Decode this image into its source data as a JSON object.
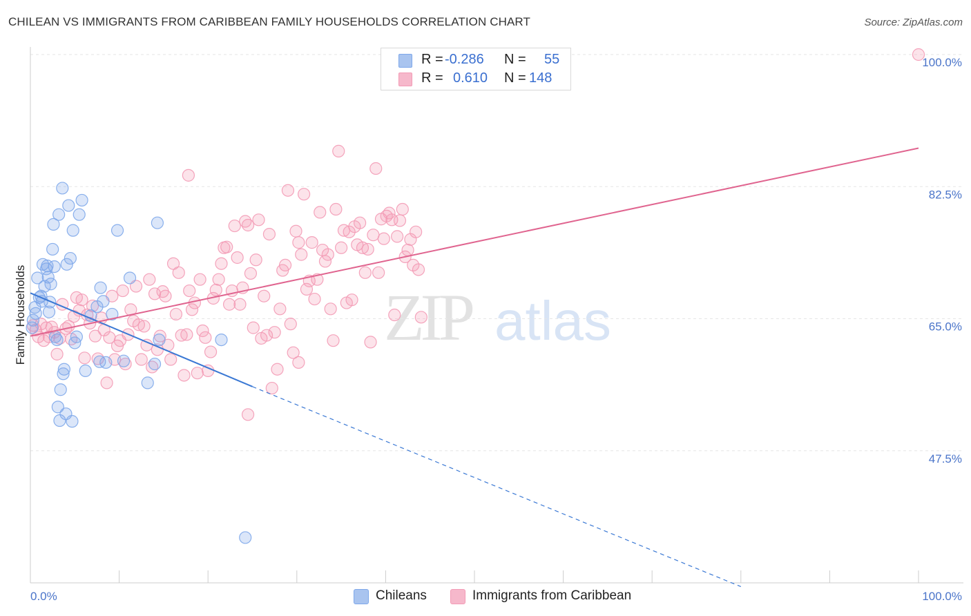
{
  "title": "CHILEAN VS IMMIGRANTS FROM CARIBBEAN FAMILY HOUSEHOLDS CORRELATION CHART",
  "source": "Source: ZipAtlas.com",
  "watermark": {
    "zip": "ZIP",
    "atlas": "atlas"
  },
  "legend": {
    "r_label": "R =",
    "n_label": "N =",
    "rows": [
      {
        "r": "-0.286",
        "n": "55",
        "color": "#a9c4ef"
      },
      {
        "r": "0.610",
        "n": "148",
        "color": "#f6b8cb"
      }
    ]
  },
  "bottom_legend": [
    {
      "label": "Chileans",
      "color": "#a9c4ef"
    },
    {
      "label": "Immigrants from Caribbean",
      "color": "#f6b8cb"
    }
  ],
  "chart_data": {
    "type": "scatter",
    "title": "CHILEAN VS IMMIGRANTS FROM CARIBBEAN FAMILY HOUSEHOLDS CORRELATION CHART",
    "xlabel": "",
    "ylabel": "Family Households",
    "xlim": [
      0,
      100
    ],
    "ylim": [
      30,
      100
    ],
    "x_tick_labels": [
      "0.0%",
      "100.0%"
    ],
    "y_ticks": [
      47.5,
      65.0,
      82.5,
      100.0
    ],
    "y_tick_labels": [
      "47.5%",
      "65.0%",
      "82.5%",
      "100.0%"
    ],
    "grid": true,
    "series": [
      {
        "name": "Chileans",
        "color": "#7da7ea",
        "line_color": "#3a78d4",
        "trend": {
          "x0": 0,
          "y0": 68.4,
          "x1": 25,
          "y1": 56.0,
          "dash_to_x": 80,
          "dash_to_y": 29.5
        },
        "points": [
          [
            0.3,
            64.8
          ],
          [
            0.5,
            66.5
          ],
          [
            0.6,
            65.7
          ],
          [
            0.8,
            70.4
          ],
          [
            1.0,
            67.8
          ],
          [
            1.2,
            68.0
          ],
          [
            1.3,
            67.3
          ],
          [
            1.4,
            72.2
          ],
          [
            1.6,
            69.3
          ],
          [
            1.8,
            71.6
          ],
          [
            1.9,
            72.0
          ],
          [
            2.0,
            70.5
          ],
          [
            2.1,
            65.9
          ],
          [
            2.2,
            67.2
          ],
          [
            2.3,
            69.6
          ],
          [
            2.5,
            74.2
          ],
          [
            2.7,
            71.9
          ],
          [
            2.6,
            77.5
          ],
          [
            2.8,
            62.6
          ],
          [
            3.0,
            62.2
          ],
          [
            3.1,
            53.3
          ],
          [
            3.2,
            78.8
          ],
          [
            3.3,
            51.5
          ],
          [
            3.4,
            55.6
          ],
          [
            3.6,
            82.3
          ],
          [
            3.7,
            57.7
          ],
          [
            3.8,
            58.3
          ],
          [
            4.0,
            52.4
          ],
          [
            4.1,
            72.2
          ],
          [
            4.3,
            80.0
          ],
          [
            4.5,
            73.0
          ],
          [
            4.7,
            51.4
          ],
          [
            4.8,
            76.7
          ],
          [
            5.0,
            61.8
          ],
          [
            5.2,
            62.6
          ],
          [
            5.5,
            78.8
          ],
          [
            5.8,
            80.7
          ],
          [
            6.2,
            58.1
          ],
          [
            6.8,
            65.4
          ],
          [
            7.5,
            66.6
          ],
          [
            7.8,
            59.3
          ],
          [
            7.9,
            69.1
          ],
          [
            8.2,
            67.3
          ],
          [
            8.5,
            59.2
          ],
          [
            9.2,
            65.6
          ],
          [
            9.8,
            76.7
          ],
          [
            10.5,
            59.4
          ],
          [
            11.2,
            70.4
          ],
          [
            13.2,
            56.5
          ],
          [
            14.3,
            77.7
          ],
          [
            14.5,
            62.2
          ],
          [
            14.0,
            59.0
          ],
          [
            21.5,
            62.2
          ],
          [
            24.2,
            36.0
          ],
          [
            0.2,
            63.8
          ]
        ]
      },
      {
        "name": "Immigrants from Caribbean",
        "color": "#f39ab5",
        "line_color": "#e0648f",
        "trend": {
          "x0": 0,
          "y0": 62.7,
          "x1": 100,
          "y1": 87.6
        },
        "points": [
          [
            0.3,
            64.1
          ],
          [
            0.6,
            63.5
          ],
          [
            0.9,
            62.6
          ],
          [
            1.2,
            64.3
          ],
          [
            1.5,
            62.1
          ],
          [
            1.8,
            63.8
          ],
          [
            2.1,
            62.6
          ],
          [
            2.4,
            63.9
          ],
          [
            2.7,
            63.2
          ],
          [
            3.0,
            60.3
          ],
          [
            3.3,
            62.4
          ],
          [
            3.6,
            66.9
          ],
          [
            4.0,
            63.7
          ],
          [
            4.3,
            64.0
          ],
          [
            4.6,
            62.3
          ],
          [
            4.9,
            65.3
          ],
          [
            5.2,
            67.8
          ],
          [
            5.5,
            66.1
          ],
          [
            5.8,
            67.5
          ],
          [
            6.1,
            59.8
          ],
          [
            6.4,
            65.5
          ],
          [
            6.7,
            64.4
          ],
          [
            7.0,
            66.7
          ],
          [
            7.3,
            62.7
          ],
          [
            7.6,
            59.7
          ],
          [
            8.0,
            65.1
          ],
          [
            8.3,
            63.5
          ],
          [
            8.6,
            56.5
          ],
          [
            8.9,
            62.5
          ],
          [
            9.2,
            68.0
          ],
          [
            9.5,
            59.6
          ],
          [
            9.8,
            61.4
          ],
          [
            10.1,
            62.1
          ],
          [
            10.4,
            68.7
          ],
          [
            10.7,
            59.0
          ],
          [
            11.0,
            62.9
          ],
          [
            11.3,
            66.2
          ],
          [
            11.6,
            64.7
          ],
          [
            11.9,
            69.3
          ],
          [
            12.2,
            64.2
          ],
          [
            12.5,
            59.6
          ],
          [
            12.8,
            64.0
          ],
          [
            13.1,
            61.5
          ],
          [
            13.4,
            70.2
          ],
          [
            13.7,
            58.6
          ],
          [
            14.0,
            68.3
          ],
          [
            14.3,
            60.9
          ],
          [
            14.6,
            62.7
          ],
          [
            14.9,
            68.6
          ],
          [
            15.2,
            68.0
          ],
          [
            15.5,
            61.5
          ],
          [
            15.8,
            59.6
          ],
          [
            16.1,
            72.3
          ],
          [
            16.4,
            65.6
          ],
          [
            16.7,
            71.1
          ],
          [
            17.0,
            62.8
          ],
          [
            17.3,
            57.5
          ],
          [
            17.6,
            62.9
          ],
          [
            17.9,
            68.7
          ],
          [
            18.2,
            66.2
          ],
          [
            18.5,
            67.1
          ],
          [
            18.8,
            57.8
          ],
          [
            19.1,
            70.2
          ],
          [
            19.4,
            63.4
          ],
          [
            19.7,
            62.5
          ],
          [
            20.0,
            58.1
          ],
          [
            20.3,
            60.6
          ],
          [
            20.6,
            67.7
          ],
          [
            20.9,
            68.8
          ],
          [
            21.2,
            70.2
          ],
          [
            21.5,
            72.3
          ],
          [
            21.8,
            74.4
          ],
          [
            22.1,
            74.5
          ],
          [
            22.4,
            66.9
          ],
          [
            22.7,
            68.7
          ],
          [
            23.0,
            77.3
          ],
          [
            23.3,
            73.1
          ],
          [
            23.6,
            66.9
          ],
          [
            23.9,
            69.1
          ],
          [
            24.2,
            77.9
          ],
          [
            24.5,
            77.4
          ],
          [
            24.8,
            71.0
          ],
          [
            25.1,
            63.8
          ],
          [
            25.4,
            72.8
          ],
          [
            25.7,
            78.1
          ],
          [
            26.0,
            62.4
          ],
          [
            26.3,
            68.0
          ],
          [
            26.6,
            62.8
          ],
          [
            26.9,
            76.2
          ],
          [
            27.2,
            55.8
          ],
          [
            27.5,
            63.2
          ],
          [
            27.8,
            58.3
          ],
          [
            28.1,
            66.3
          ],
          [
            28.4,
            71.4
          ],
          [
            28.7,
            72.1
          ],
          [
            29.0,
            82.0
          ],
          [
            29.3,
            64.3
          ],
          [
            29.6,
            60.5
          ],
          [
            29.9,
            76.6
          ],
          [
            30.2,
            75.1
          ],
          [
            30.5,
            73.5
          ],
          [
            30.8,
            81.5
          ],
          [
            31.1,
            68.9
          ],
          [
            31.4,
            70.0
          ],
          [
            31.7,
            75.1
          ],
          [
            32.0,
            67.6
          ],
          [
            32.3,
            70.2
          ],
          [
            32.6,
            79.1
          ],
          [
            32.9,
            74.1
          ],
          [
            33.2,
            72.6
          ],
          [
            33.5,
            73.5
          ],
          [
            33.8,
            66.3
          ],
          [
            34.1,
            62.1
          ],
          [
            34.4,
            79.5
          ],
          [
            34.7,
            87.2
          ],
          [
            35.0,
            74.4
          ],
          [
            35.3,
            76.7
          ],
          [
            35.6,
            67.1
          ],
          [
            35.9,
            76.5
          ],
          [
            36.2,
            67.5
          ],
          [
            36.5,
            77.2
          ],
          [
            36.8,
            74.8
          ],
          [
            37.1,
            77.7
          ],
          [
            37.4,
            74.4
          ],
          [
            37.7,
            71.1
          ],
          [
            38.0,
            74.2
          ],
          [
            38.3,
            61.9
          ],
          [
            38.6,
            76.1
          ],
          [
            38.9,
            84.9
          ],
          [
            39.2,
            71.1
          ],
          [
            39.5,
            78.2
          ],
          [
            39.8,
            75.6
          ],
          [
            40.1,
            78.6
          ],
          [
            40.4,
            79.0
          ],
          [
            40.7,
            78.1
          ],
          [
            41.0,
            65.5
          ],
          [
            41.3,
            75.9
          ],
          [
            41.6,
            78.0
          ],
          [
            41.9,
            79.5
          ],
          [
            42.2,
            73.2
          ],
          [
            42.5,
            74.1
          ],
          [
            42.8,
            75.5
          ],
          [
            43.1,
            72.1
          ],
          [
            43.4,
            76.5
          ],
          [
            43.7,
            71.5
          ],
          [
            44.0,
            65.2
          ],
          [
            24.5,
            52.3
          ],
          [
            17.8,
            84.0
          ],
          [
            30.2,
            59.2
          ],
          [
            100.0,
            100.0
          ]
        ]
      }
    ]
  }
}
